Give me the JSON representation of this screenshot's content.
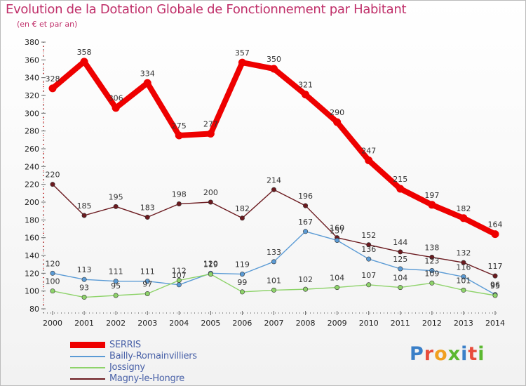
{
  "header": {
    "title": "Evolution de la Dotation Globale de Fonctionnement par Habitant",
    "subtitle": "(en € et par an)"
  },
  "logo": {
    "text": "Proxiti",
    "colors": [
      "#3a7fc8",
      "#e84c3c",
      "#f0a020",
      "#5bb830",
      "#3a7fc8",
      "#e84c3c",
      "#5bb830"
    ]
  },
  "chart_data": {
    "type": "line",
    "title": "Evolution de la Dotation Globale de Fonctionnement par Habitant",
    "subtitle": "(en € et par an)",
    "xlabel": "",
    "ylabel": "",
    "x": [
      2000,
      2001,
      2002,
      2003,
      2004,
      2005,
      2006,
      2007,
      2008,
      2009,
      2010,
      2011,
      2012,
      2013,
      2014
    ],
    "yticks": [
      80,
      100,
      120,
      140,
      160,
      180,
      200,
      220,
      240,
      260,
      280,
      300,
      320,
      340,
      360,
      380
    ],
    "ylim": [
      80,
      380
    ],
    "grid": false,
    "legend_position": "bottom-left",
    "series": [
      {
        "name": "SERRIS",
        "color": "#ee0000",
        "width": "thick",
        "values": [
          328,
          358,
          306,
          334,
          275,
          277,
          357,
          350,
          321,
          290,
          247,
          215,
          197,
          182,
          164
        ]
      },
      {
        "name": "Bailly-Romainvilliers",
        "color": "#5b9bd5",
        "width": "thin",
        "values": [
          120,
          113,
          111,
          111,
          107,
          120,
          119,
          133,
          167,
          157,
          136,
          125,
          123,
          116,
          96
        ]
      },
      {
        "name": "Jossigny",
        "color": "#8ed36a",
        "width": "thin",
        "values": [
          100,
          93,
          95,
          97,
          112,
          119,
          99,
          101,
          102,
          104,
          107,
          104,
          109,
          101,
          95
        ]
      },
      {
        "name": "Magny-le-Hongre",
        "color": "#6b1a1f",
        "width": "thin",
        "values": [
          220,
          185,
          195,
          183,
          198,
          200,
          182,
          214,
          196,
          160,
          152,
          144,
          138,
          132,
          117
        ]
      }
    ]
  }
}
